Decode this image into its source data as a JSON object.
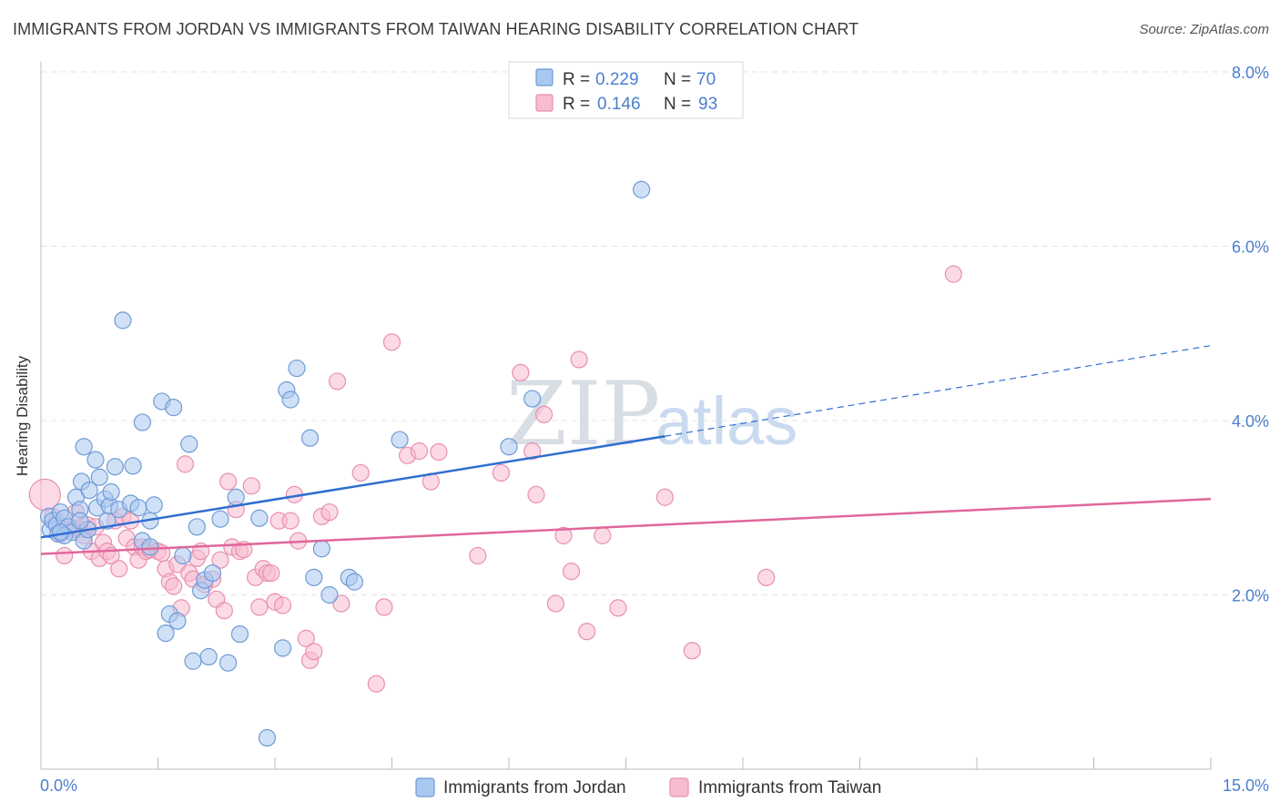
{
  "title": "IMMIGRANTS FROM JORDAN VS IMMIGRANTS FROM TAIWAN HEARING DISABILITY CORRELATION CHART",
  "source": "Source: ZipAtlas.com",
  "watermark": {
    "part1": "ZIP",
    "part2": "atlas"
  },
  "colors": {
    "jordan_fill": "#a9c8f0",
    "jordan_stroke": "#6f9ad6",
    "jordan_line": "#2f6fd0",
    "taiwan_fill": "#f7bcd0",
    "taiwan_stroke": "#e98fb0",
    "taiwan_line": "#e0679a",
    "axis_text": "#4a7fd0",
    "grid": "#e3e3e3"
  },
  "legend": {
    "jordan": {
      "r_label": "R = ",
      "r_value": "0.229",
      "n_label": "N = ",
      "n_value": "70"
    },
    "taiwan": {
      "r_label": "R = ",
      "r_value": "0.146",
      "n_label": "N = ",
      "n_value": "93"
    }
  },
  "chart_data": {
    "type": "scatter",
    "title": "IMMIGRANTS FROM JORDAN VS IMMIGRANTS FROM TAIWAN HEARING DISABILITY CORRELATION CHART",
    "xlabel": "",
    "ylabel": "Hearing Disability",
    "xlim": [
      0,
      15
    ],
    "ylim": [
      0,
      8.0
    ],
    "x_tick_labels": [
      "0.0%",
      "15.0%"
    ],
    "y_ticks": [
      2.0,
      4.0,
      6.0,
      8.0
    ],
    "y_tick_labels": [
      "2.0%",
      "4.0%",
      "6.0%",
      "8.0%"
    ],
    "grid": true,
    "legend_position": "bottom-center",
    "series": [
      {
        "name": "Immigrants from Jordan",
        "r": 0.229,
        "n": 70,
        "trend": {
          "x0": 0.0,
          "y0": 2.66,
          "x1": 8.0,
          "y1": 3.82,
          "dashed_to_x": 15.0,
          "dashed_to_y": 4.86
        },
        "points": [
          [
            0.1,
            2.9
          ],
          [
            0.12,
            2.75
          ],
          [
            0.15,
            2.85
          ],
          [
            0.2,
            2.8
          ],
          [
            0.22,
            2.7
          ],
          [
            0.25,
            2.95
          ],
          [
            0.3,
            2.88
          ],
          [
            0.35,
            2.78
          ],
          [
            0.4,
            2.72
          ],
          [
            0.45,
            3.12
          ],
          [
            0.5,
            2.98
          ],
          [
            0.55,
            2.62
          ],
          [
            0.6,
            2.75
          ],
          [
            0.5,
            2.85
          ],
          [
            0.3,
            2.68
          ],
          [
            0.52,
            3.3
          ],
          [
            0.55,
            3.7
          ],
          [
            0.62,
            3.2
          ],
          [
            0.7,
            3.55
          ],
          [
            0.72,
            3.0
          ],
          [
            0.75,
            3.35
          ],
          [
            0.82,
            3.1
          ],
          [
            0.85,
            2.85
          ],
          [
            0.88,
            3.02
          ],
          [
            0.9,
            3.18
          ],
          [
            0.95,
            3.47
          ],
          [
            1.0,
            2.98
          ],
          [
            1.05,
            5.15
          ],
          [
            1.15,
            3.05
          ],
          [
            1.18,
            3.48
          ],
          [
            1.25,
            3.0
          ],
          [
            1.3,
            2.62
          ],
          [
            1.4,
            2.85
          ],
          [
            1.45,
            3.03
          ],
          [
            1.55,
            4.22
          ],
          [
            1.3,
            3.98
          ],
          [
            1.6,
            1.56
          ],
          [
            1.65,
            1.78
          ],
          [
            1.7,
            4.15
          ],
          [
            1.75,
            1.7
          ],
          [
            1.82,
            2.45
          ],
          [
            1.9,
            3.73
          ],
          [
            1.95,
            1.24
          ],
          [
            2.0,
            2.78
          ],
          [
            2.05,
            2.05
          ],
          [
            2.1,
            2.17
          ],
          [
            2.15,
            1.29
          ],
          [
            2.2,
            2.25
          ],
          [
            2.3,
            2.87
          ],
          [
            2.4,
            1.22
          ],
          [
            2.5,
            3.12
          ],
          [
            2.55,
            1.55
          ],
          [
            2.9,
            0.36
          ],
          [
            2.8,
            2.88
          ],
          [
            3.1,
            1.39
          ],
          [
            3.15,
            4.35
          ],
          [
            3.2,
            4.24
          ],
          [
            3.28,
            4.6
          ],
          [
            3.45,
            3.8
          ],
          [
            3.5,
            2.2
          ],
          [
            3.6,
            2.53
          ],
          [
            3.7,
            2.0
          ],
          [
            3.95,
            2.2
          ],
          [
            4.02,
            2.15
          ],
          [
            4.6,
            3.78
          ],
          [
            6.0,
            3.7
          ],
          [
            6.3,
            4.25
          ],
          [
            7.7,
            6.65
          ],
          [
            1.4,
            2.55
          ],
          [
            0.25,
            2.72
          ]
        ]
      },
      {
        "name": "Immigrants from Taiwan",
        "r": 0.146,
        "n": 93,
        "trend": {
          "x0": 0.0,
          "y0": 2.47,
          "x1": 15.0,
          "y1": 3.1
        },
        "points": [
          [
            0.05,
            3.15
          ],
          [
            0.15,
            2.9
          ],
          [
            0.2,
            2.85
          ],
          [
            0.25,
            2.7
          ],
          [
            0.3,
            2.45
          ],
          [
            0.35,
            2.75
          ],
          [
            0.4,
            2.75
          ],
          [
            0.45,
            2.95
          ],
          [
            0.5,
            2.75
          ],
          [
            0.55,
            2.68
          ],
          [
            0.6,
            2.8
          ],
          [
            0.65,
            2.5
          ],
          [
            0.7,
            2.78
          ],
          [
            0.75,
            2.42
          ],
          [
            0.8,
            2.6
          ],
          [
            0.85,
            2.5
          ],
          [
            0.9,
            2.45
          ],
          [
            0.95,
            2.85
          ],
          [
            1.0,
            2.3
          ],
          [
            1.05,
            2.9
          ],
          [
            1.1,
            2.65
          ],
          [
            1.15,
            2.85
          ],
          [
            1.2,
            2.55
          ],
          [
            1.25,
            2.4
          ],
          [
            1.3,
            2.55
          ],
          [
            1.35,
            2.5
          ],
          [
            1.4,
            2.52
          ],
          [
            1.5,
            2.5
          ],
          [
            1.55,
            2.48
          ],
          [
            1.6,
            2.3
          ],
          [
            1.65,
            2.15
          ],
          [
            1.7,
            2.1
          ],
          [
            1.75,
            2.35
          ],
          [
            1.8,
            1.85
          ],
          [
            1.85,
            3.5
          ],
          [
            1.9,
            2.25
          ],
          [
            1.95,
            2.18
          ],
          [
            2.0,
            2.42
          ],
          [
            2.05,
            2.5
          ],
          [
            2.1,
            2.12
          ],
          [
            2.2,
            2.18
          ],
          [
            2.25,
            1.95
          ],
          [
            2.3,
            2.4
          ],
          [
            2.35,
            1.82
          ],
          [
            2.4,
            3.3
          ],
          [
            2.45,
            2.55
          ],
          [
            2.5,
            2.98
          ],
          [
            2.55,
            2.5
          ],
          [
            2.6,
            2.52
          ],
          [
            2.7,
            3.25
          ],
          [
            2.75,
            2.2
          ],
          [
            2.8,
            1.86
          ],
          [
            2.85,
            2.3
          ],
          [
            2.9,
            2.25
          ],
          [
            2.95,
            2.25
          ],
          [
            3.0,
            1.92
          ],
          [
            3.05,
            2.85
          ],
          [
            3.1,
            1.88
          ],
          [
            3.2,
            2.85
          ],
          [
            3.25,
            3.15
          ],
          [
            3.3,
            2.62
          ],
          [
            3.4,
            1.5
          ],
          [
            3.45,
            1.25
          ],
          [
            3.5,
            1.35
          ],
          [
            3.6,
            2.9
          ],
          [
            3.7,
            2.95
          ],
          [
            3.8,
            4.45
          ],
          [
            3.85,
            1.9
          ],
          [
            4.1,
            3.4
          ],
          [
            4.3,
            0.98
          ],
          [
            4.4,
            1.86
          ],
          [
            4.5,
            4.9
          ],
          [
            4.7,
            3.6
          ],
          [
            4.85,
            3.65
          ],
          [
            5.0,
            3.3
          ],
          [
            5.1,
            3.64
          ],
          [
            5.6,
            2.45
          ],
          [
            5.9,
            3.4
          ],
          [
            6.15,
            4.55
          ],
          [
            6.3,
            3.65
          ],
          [
            6.35,
            3.15
          ],
          [
            6.45,
            4.07
          ],
          [
            6.6,
            1.9
          ],
          [
            6.7,
            2.68
          ],
          [
            6.8,
            2.27
          ],
          [
            6.9,
            4.7
          ],
          [
            7.0,
            1.58
          ],
          [
            7.2,
            2.68
          ],
          [
            7.4,
            1.85
          ],
          [
            8.0,
            3.12
          ],
          [
            8.35,
            1.36
          ],
          [
            9.3,
            2.2
          ],
          [
            11.7,
            5.68
          ]
        ]
      }
    ]
  },
  "bottom_legend": {
    "jordan_label": "Immigrants from Jordan",
    "taiwan_label": "Immigrants from Taiwan"
  }
}
